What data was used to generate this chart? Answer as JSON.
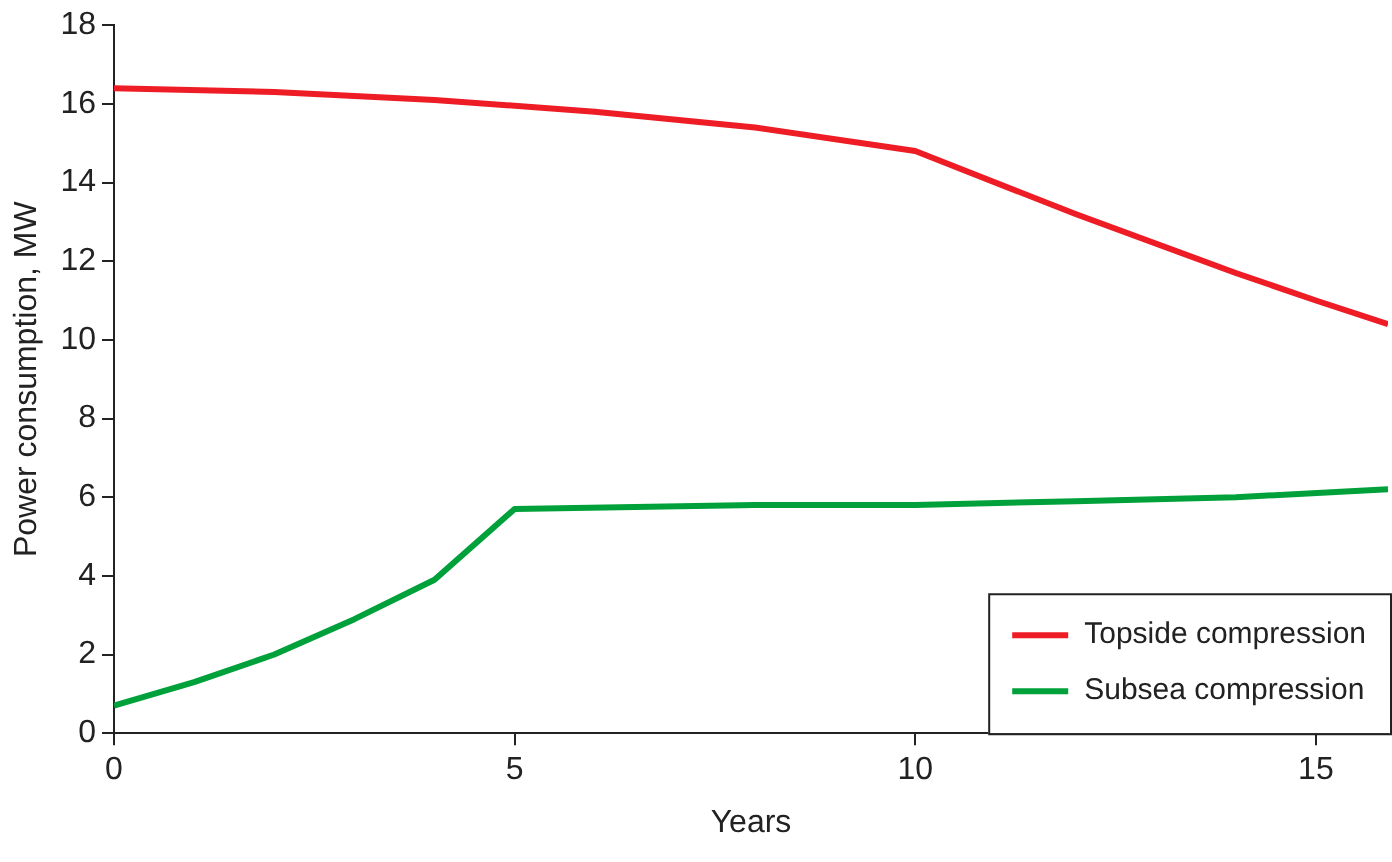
{
  "chart_data": {
    "type": "line",
    "xlabel": "Years",
    "ylabel": "Power consumption, MW",
    "xlim": [
      0,
      15.9
    ],
    "xticks": [
      0,
      5,
      10,
      15
    ],
    "ylim": [
      0,
      18
    ],
    "yticks": [
      0,
      2,
      4,
      6,
      8,
      10,
      12,
      14,
      16,
      18
    ],
    "grid": false,
    "legend": "bottom right",
    "marker": "none",
    "line_style": "solid",
    "series": [
      {
        "name": "Topside compression",
        "color": "#ee1c25",
        "x": [
          0,
          2,
          4,
          6,
          8,
          10,
          12,
          14,
          15,
          15.9
        ],
        "values": [
          16.4,
          16.3,
          16.1,
          15.8,
          15.4,
          14.8,
          13.2,
          11.7,
          11.0,
          10.4
        ]
      },
      {
        "name": "Subsea compression",
        "color": "#00a13a",
        "x": [
          0,
          1,
          2,
          3,
          4,
          5,
          8,
          10,
          12,
          14,
          15.9
        ],
        "values": [
          0.7,
          1.3,
          2.0,
          2.9,
          3.9,
          5.7,
          5.8,
          5.8,
          5.9,
          6.0,
          6.2
        ]
      }
    ]
  }
}
